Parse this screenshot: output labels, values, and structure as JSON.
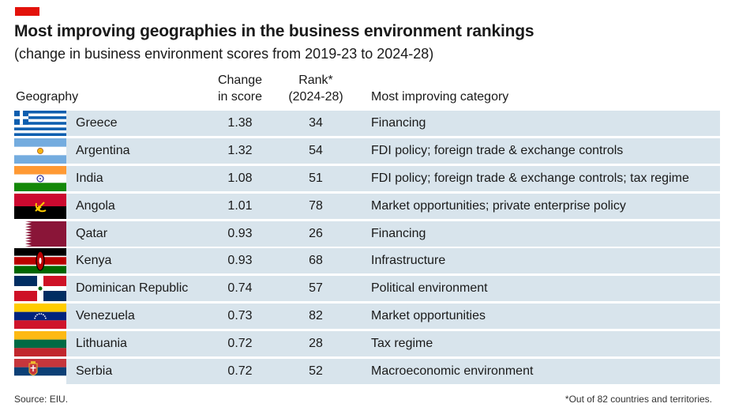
{
  "accent_color": "#e3120b",
  "row_color": "#d8e4ec",
  "title": "Most improving geographies in the business environment rankings",
  "subtitle": "(change in business environment scores from 2019-23 to 2024-28)",
  "headers": {
    "geography": "Geography",
    "change": "Change in score",
    "rank": "Rank* (2024-28)",
    "category": "Most improving category"
  },
  "chart_data": {
    "type": "table",
    "columns": [
      "Geography",
      "Change in score",
      "Rank* (2024-28)",
      "Most improving category"
    ],
    "rows": [
      {
        "flag": "greece-flag-icon",
        "country": "Greece",
        "change": "1.38",
        "rank": "34",
        "category": "Financing"
      },
      {
        "flag": "argentina-flag-icon",
        "country": "Argentina",
        "change": "1.32",
        "rank": "54",
        "category": "FDI policy; foreign trade & exchange controls"
      },
      {
        "flag": "india-flag-icon",
        "country": "India",
        "change": "1.08",
        "rank": "51",
        "category": "FDI policy; foreign trade & exchange controls; tax regime"
      },
      {
        "flag": "angola-flag-icon",
        "country": "Angola",
        "change": "1.01",
        "rank": "78",
        "category": "Market opportunities; private enterprise policy"
      },
      {
        "flag": "qatar-flag-icon",
        "country": "Qatar",
        "change": "0.93",
        "rank": "26",
        "category": "Financing"
      },
      {
        "flag": "kenya-flag-icon",
        "country": "Kenya",
        "change": "0.93",
        "rank": "68",
        "category": "Infrastructure"
      },
      {
        "flag": "dominican-republic-flag-icon",
        "country": "Dominican Republic",
        "change": "0.74",
        "rank": "57",
        "category": "Political environment"
      },
      {
        "flag": "venezuela-flag-icon",
        "country": "Venezuela",
        "change": "0.73",
        "rank": "82",
        "category": "Market opportunities"
      },
      {
        "flag": "lithuania-flag-icon",
        "country": "Lithuania",
        "change": "0.72",
        "rank": "28",
        "category": "Tax regime"
      },
      {
        "flag": "serbia-flag-icon",
        "country": "Serbia",
        "change": "0.72",
        "rank": "52",
        "category": "Macroeconomic environment"
      }
    ]
  },
  "source": "Source: EIU.",
  "footnote": "*Out of 82 countries and territories."
}
